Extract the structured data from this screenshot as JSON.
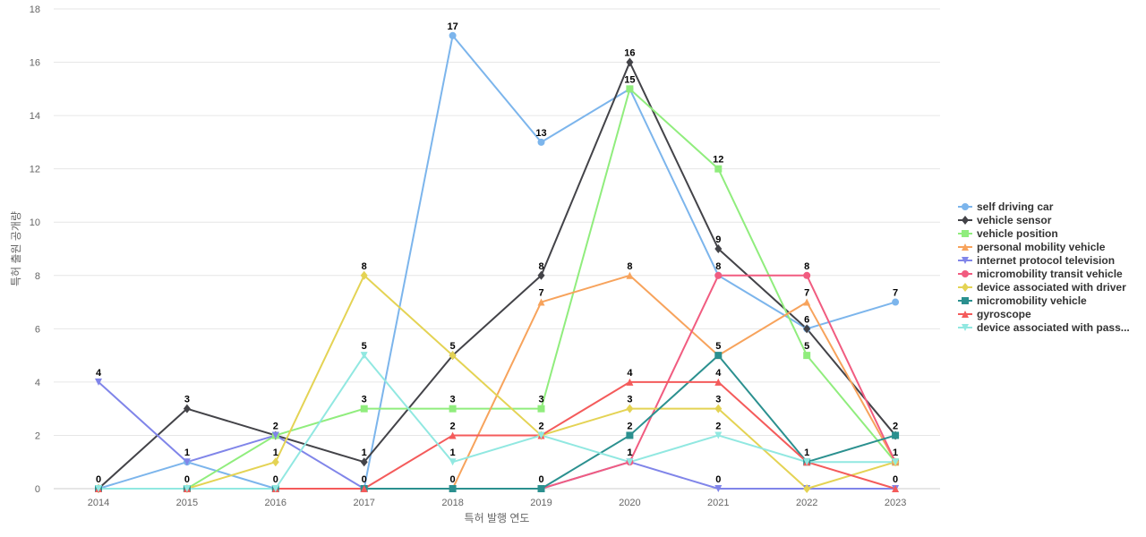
{
  "chart_data": {
    "type": "line",
    "title": "",
    "xlabel": "특허 발행 연도",
    "ylabel": "특허 출원 공개량",
    "categories": [
      "2014",
      "2015",
      "2016",
      "2017",
      "2018",
      "2019",
      "2020",
      "2021",
      "2022",
      "2023"
    ],
    "ylim": [
      0,
      18
    ],
    "yticks": [
      0,
      2,
      4,
      6,
      8,
      10,
      12,
      14,
      16,
      18
    ],
    "legend_position": "right",
    "grid": true,
    "series": [
      {
        "name": "self driving car",
        "legend_label": "self driving car",
        "color": "#7cb5ec",
        "marker": "circle",
        "values": [
          0,
          1,
          0,
          0,
          17,
          13,
          15,
          8,
          6,
          7
        ],
        "labels": [
          null,
          null,
          null,
          null,
          17,
          13,
          null,
          null,
          null,
          7
        ]
      },
      {
        "name": "vehicle sensor",
        "legend_label": "vehicle sensor",
        "color": "#434348",
        "marker": "diamond",
        "values": [
          0,
          3,
          2,
          1,
          5,
          8,
          16,
          9,
          6,
          2
        ],
        "labels": [
          0,
          3,
          null,
          1,
          5,
          8,
          16,
          9,
          6,
          2
        ]
      },
      {
        "name": "vehicle position",
        "legend_label": "vehicle position",
        "color": "#90ed7d",
        "marker": "square",
        "values": [
          0,
          0,
          2,
          3,
          3,
          3,
          15,
          12,
          5,
          1
        ],
        "labels": [
          null,
          0,
          null,
          3,
          3,
          3,
          15,
          12,
          5,
          null
        ]
      },
      {
        "name": "personal mobility vehicle",
        "legend_label": "personal mobility vehicle",
        "color": "#f7a35c",
        "marker": "triangle",
        "values": [
          0,
          0,
          0,
          0,
          0,
          7,
          8,
          5,
          7,
          1
        ],
        "labels": [
          null,
          null,
          null,
          null,
          null,
          7,
          8,
          null,
          7,
          null
        ]
      },
      {
        "name": "internet protocol television",
        "legend_label": "internet protocol television",
        "color": "#8085e9",
        "marker": "triangle-down",
        "values": [
          4,
          1,
          2,
          0,
          0,
          0,
          1,
          0,
          0,
          0
        ],
        "labels": [
          4,
          1,
          2,
          0,
          null,
          0,
          1,
          0,
          null,
          null
        ]
      },
      {
        "name": "micromobility transit vehicle",
        "legend_label": "micromobility transit vehicle",
        "color": "#f15c80",
        "marker": "circle",
        "values": [
          0,
          0,
          0,
          0,
          0,
          0,
          1,
          8,
          8,
          1
        ],
        "labels": [
          null,
          null,
          null,
          null,
          null,
          null,
          null,
          8,
          8,
          null
        ]
      },
      {
        "name": "device associated with driver",
        "legend_label": "device associated with driver",
        "color": "#e4d354",
        "marker": "diamond",
        "values": [
          0,
          0,
          1,
          8,
          5,
          2,
          3,
          3,
          0,
          1
        ],
        "labels": [
          null,
          null,
          1,
          8,
          null,
          2,
          3,
          3,
          null,
          null
        ]
      },
      {
        "name": "micromobility vehicle",
        "legend_label": "micromobility vehicle",
        "color": "#2b908f",
        "marker": "square",
        "values": [
          0,
          0,
          0,
          0,
          0,
          0,
          2,
          5,
          1,
          2
        ],
        "labels": [
          null,
          null,
          0,
          null,
          0,
          null,
          2,
          5,
          null,
          null
        ]
      },
      {
        "name": "gyroscope",
        "legend_label": "gyroscope",
        "color": "#f45b5b",
        "marker": "triangle",
        "values": [
          0,
          0,
          0,
          0,
          2,
          2,
          4,
          4,
          1,
          0
        ],
        "labels": [
          null,
          null,
          null,
          null,
          2,
          null,
          4,
          4,
          null,
          0
        ]
      },
      {
        "name": "device associated with passenger",
        "legend_label": "device associated with pass...",
        "color": "#91e8e1",
        "marker": "triangle-down",
        "values": [
          0,
          0,
          0,
          5,
          1,
          2,
          1,
          2,
          1,
          1
        ],
        "labels": [
          null,
          null,
          null,
          5,
          1,
          null,
          1,
          2,
          1,
          1
        ]
      }
    ]
  }
}
